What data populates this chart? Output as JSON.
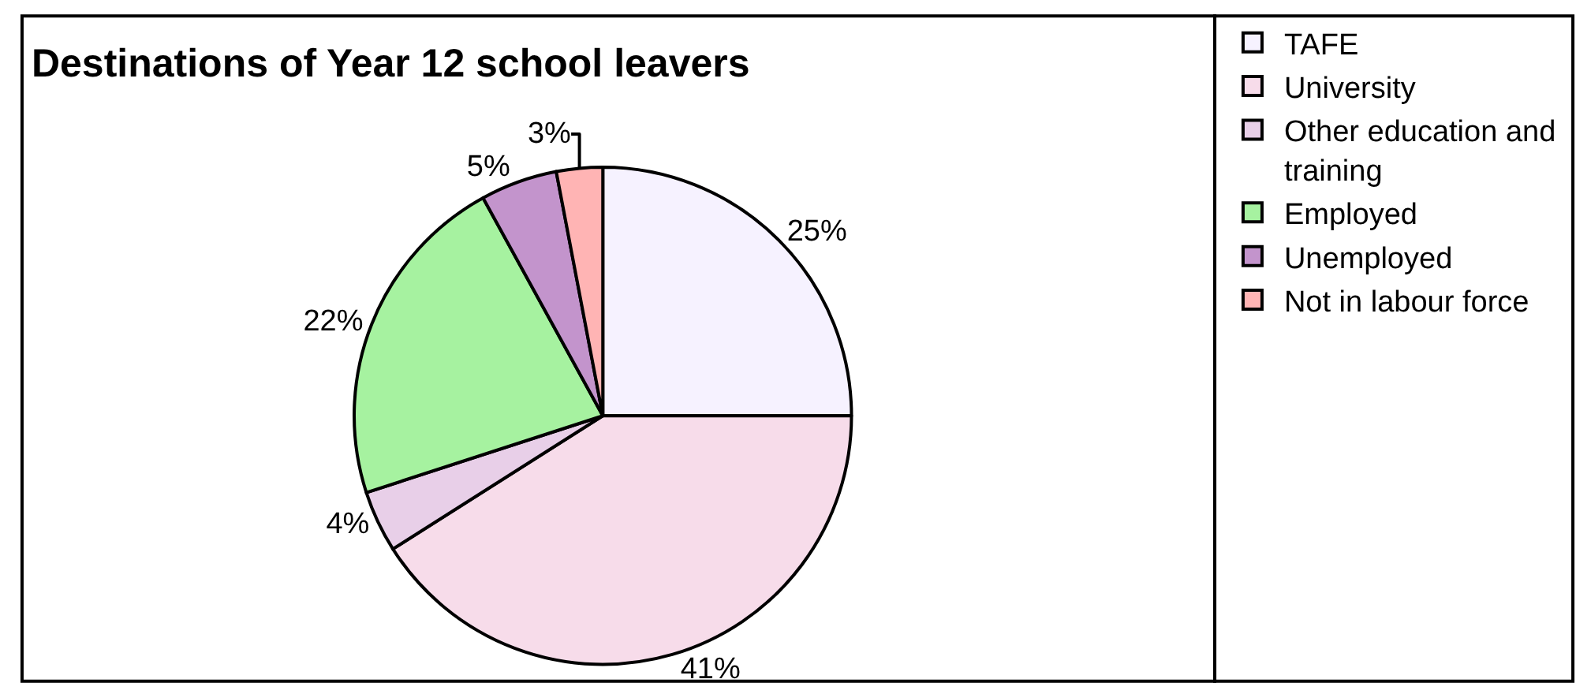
{
  "chart_data": {
    "type": "pie",
    "title": "Destinations of Year 12 school leavers",
    "categories": [
      "TAFE",
      "University",
      "Other education and training",
      "Employed",
      "Unemployed",
      "Not in labour force"
    ],
    "values": [
      25,
      41,
      4,
      22,
      5,
      3
    ],
    "value_labels": [
      "25%",
      "41%",
      "4%",
      "22%",
      "5%",
      "3%"
    ],
    "colors": [
      "#f6f2ff",
      "#f7dcea",
      "#e8cfe8",
      "#a6f2a0",
      "#c394cc",
      "#ffb4b4"
    ],
    "legend": "right"
  }
}
